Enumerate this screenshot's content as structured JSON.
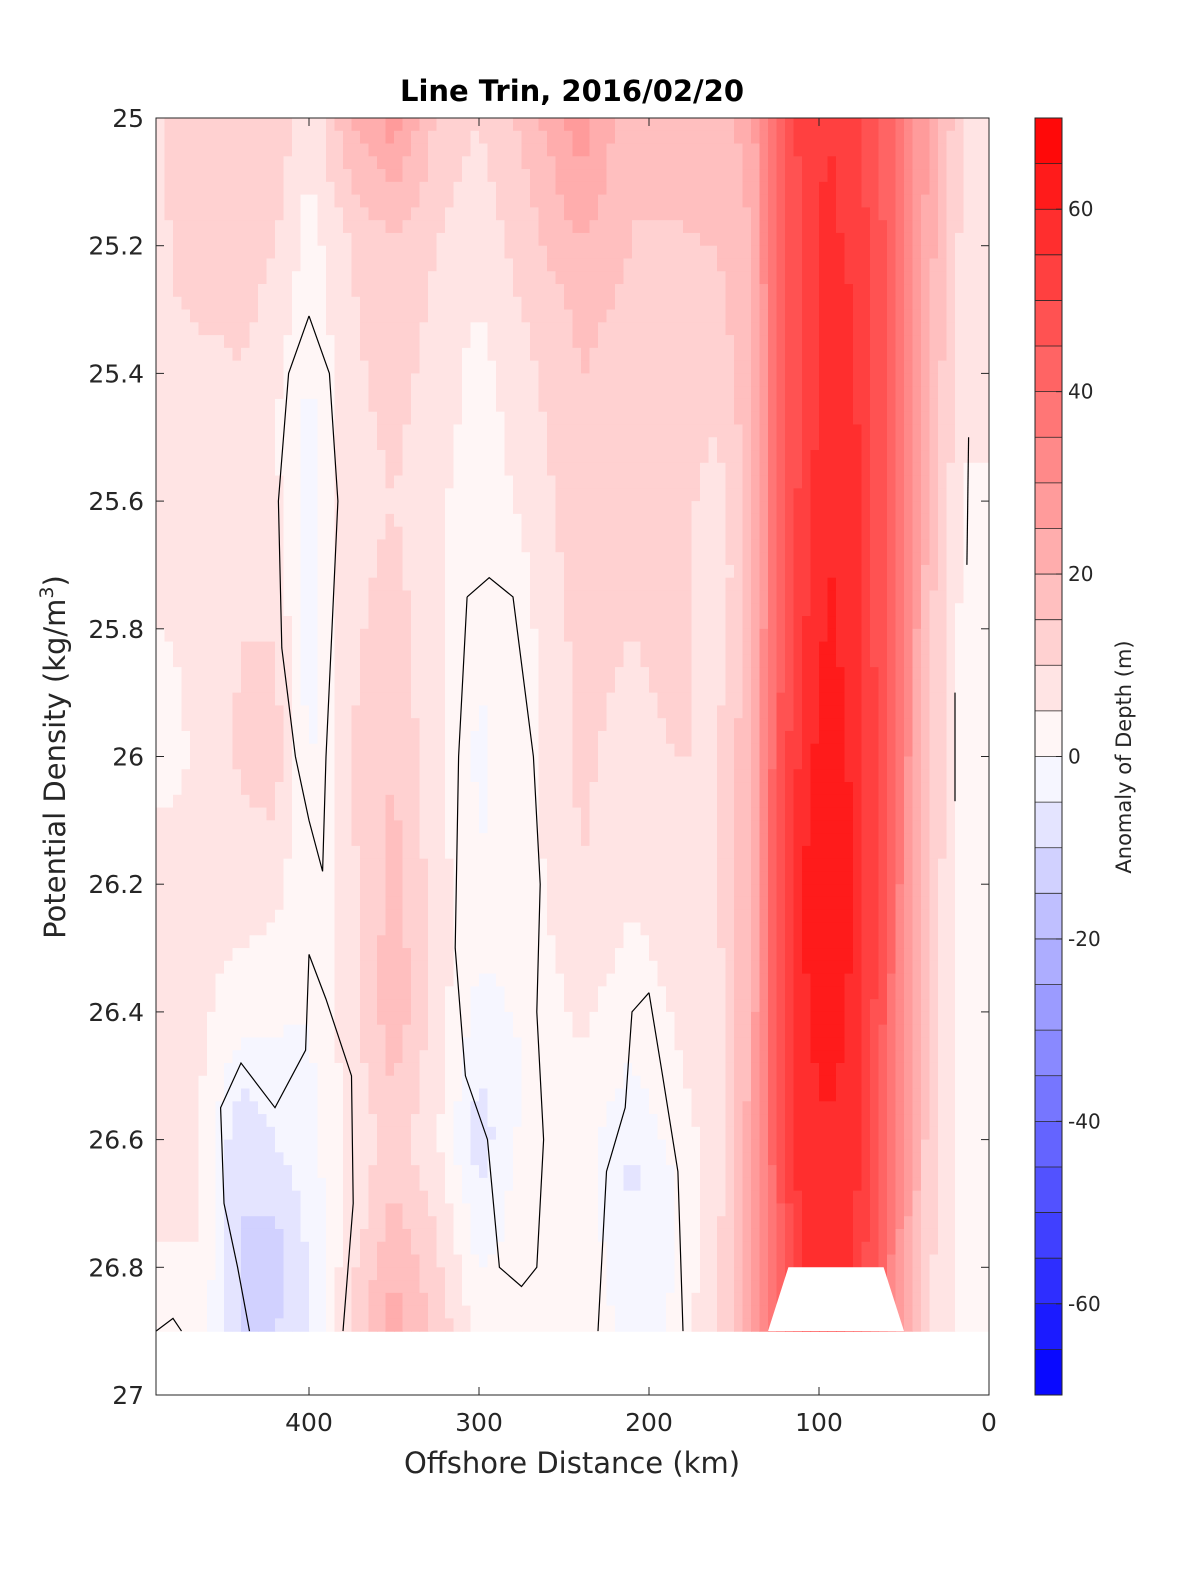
{
  "chart_data": {
    "type": "contour",
    "title": "Line Trin, 2016/02/20",
    "xlabel": "Offshore Distance (km)",
    "ylabel": "Potential Density (kg/m3)",
    "ylabel_parts": {
      "main": "Potential Density (kg/m",
      "sup": "3",
      "end": ")"
    },
    "xlim": [
      490,
      0
    ],
    "ylim": [
      25,
      27
    ],
    "x_reversed": true,
    "y_reversed": true,
    "xticks": [
      400,
      300,
      200,
      100,
      0
    ],
    "xtick_labels": [
      "400",
      "300",
      "200",
      "100",
      "0"
    ],
    "yticks": [
      25,
      25.2,
      25.4,
      25.6,
      25.8,
      26,
      26.2,
      26.4,
      26.6,
      26.8,
      27
    ],
    "ytick_labels": [
      "25",
      "25.2",
      "25.4",
      "25.6",
      "25.8",
      "26",
      "26.2",
      "26.4",
      "26.6",
      "26.8",
      "27"
    ],
    "data_bottom_density": 26.9,
    "colorbar": {
      "label": "Anomaly of Depth (m)",
      "range": [
        -70,
        70
      ],
      "step": 5,
      "ticks": [
        60,
        40,
        20,
        0,
        -20,
        -40,
        -60
      ],
      "tick_labels": [
        "60",
        "40",
        "20",
        "0",
        "-20",
        "-40",
        "-60"
      ],
      "negative_color": "#0000ff",
      "positive_color": "#ff0000"
    },
    "zero_contour_color": "#000000",
    "columns": [
      {
        "x": 485,
        "profile": [
          [
            25,
            10
          ],
          [
            25.5,
            8
          ],
          [
            26,
            3
          ],
          [
            26.2,
            8
          ],
          [
            26.6,
            8
          ],
          [
            26.86,
            3
          ],
          [
            26.9,
            0
          ]
        ]
      },
      {
        "x": 465,
        "profile": [
          [
            25,
            15
          ],
          [
            25.2,
            14
          ],
          [
            25.4,
            8
          ],
          [
            25.8,
            6
          ],
          [
            26.4,
            6
          ],
          [
            26.7,
            6
          ],
          [
            26.9,
            3
          ]
        ]
      },
      {
        "x": 440,
        "profile": [
          [
            25,
            15
          ],
          [
            25.2,
            13
          ],
          [
            25.5,
            8
          ],
          [
            26,
            11
          ],
          [
            26.4,
            3
          ],
          [
            26.6,
            -10
          ],
          [
            26.9,
            -10
          ]
        ]
      },
      {
        "x": 420,
        "profile": [
          [
            25,
            14
          ],
          [
            25.2,
            10
          ],
          [
            25.5,
            5
          ],
          [
            26,
            13
          ],
          [
            26.4,
            1
          ],
          [
            26.6,
            -5
          ],
          [
            26.8,
            -13
          ],
          [
            26.9,
            -10
          ]
        ]
      },
      {
        "x": 400,
        "profile": [
          [
            25,
            6
          ],
          [
            25.2,
            3
          ],
          [
            25.45,
            -1
          ],
          [
            25.75,
            -3
          ],
          [
            26.0,
            -1
          ],
          [
            26.3,
            1
          ],
          [
            26.6,
            -2
          ],
          [
            26.9,
            -6
          ]
        ]
      },
      {
        "x": 375,
        "profile": [
          [
            25,
            20
          ],
          [
            25.2,
            10
          ],
          [
            25.6,
            8
          ],
          [
            26,
            10
          ],
          [
            26.4,
            8
          ],
          [
            26.7,
            6
          ],
          [
            26.9,
            12
          ]
        ]
      },
      {
        "x": 350,
        "profile": [
          [
            25,
            28
          ],
          [
            25.2,
            14
          ],
          [
            25.6,
            10
          ],
          [
            26.1,
            16
          ],
          [
            26.4,
            19
          ],
          [
            26.6,
            12
          ],
          [
            26.9,
            23
          ]
        ]
      },
      {
        "x": 325,
        "profile": [
          [
            25,
            14
          ],
          [
            25.2,
            10
          ],
          [
            25.6,
            6
          ],
          [
            26,
            6
          ],
          [
            26.3,
            8
          ],
          [
            26.6,
            6
          ],
          [
            26.9,
            14
          ]
        ]
      },
      {
        "x": 300,
        "profile": [
          [
            25,
            10
          ],
          [
            25.4,
            3
          ],
          [
            25.7,
            2
          ],
          [
            26,
            -1
          ],
          [
            26.3,
            1
          ],
          [
            26.6,
            -8
          ],
          [
            26.8,
            0
          ],
          [
            26.9,
            3
          ]
        ]
      },
      {
        "x": 275,
        "profile": [
          [
            25,
            16
          ],
          [
            25.4,
            8
          ],
          [
            25.8,
            3
          ],
          [
            26.2,
            2
          ],
          [
            26.5,
            0
          ],
          [
            26.7,
            2
          ],
          [
            26.9,
            2
          ]
        ]
      },
      {
        "x": 240,
        "profile": [
          [
            25,
            28
          ],
          [
            25.3,
            16
          ],
          [
            25.8,
            12
          ],
          [
            26.2,
            10
          ],
          [
            26.4,
            6
          ],
          [
            26.6,
            2
          ],
          [
            26.9,
            4
          ]
        ]
      },
      {
        "x": 210,
        "profile": [
          [
            25,
            16
          ],
          [
            25.3,
            14
          ],
          [
            25.8,
            10
          ],
          [
            26.2,
            6
          ],
          [
            26.45,
            1
          ],
          [
            26.65,
            -6
          ],
          [
            26.9,
            -2
          ]
        ]
      },
      {
        "x": 185,
        "profile": [
          [
            25,
            16
          ],
          [
            25.3,
            14
          ],
          [
            25.8,
            12
          ],
          [
            26.2,
            8
          ],
          [
            26.5,
            4
          ],
          [
            26.7,
            -1
          ],
          [
            26.9,
            1
          ]
        ]
      },
      {
        "x": 160,
        "profile": [
          [
            25,
            18
          ],
          [
            25.4,
            12
          ],
          [
            25.7,
            5
          ],
          [
            26,
            10
          ],
          [
            26.4,
            8
          ],
          [
            26.7,
            8
          ],
          [
            26.9,
            10
          ]
        ]
      },
      {
        "x": 140,
        "profile": [
          [
            25,
            22
          ],
          [
            25.4,
            18
          ],
          [
            25.8,
            18
          ],
          [
            26.2,
            20
          ],
          [
            26.6,
            22
          ],
          [
            26.9,
            22
          ]
        ]
      },
      {
        "x": 125,
        "profile": [
          [
            25,
            42
          ],
          [
            25.4,
            40
          ],
          [
            25.8,
            42
          ],
          [
            26.2,
            46
          ],
          [
            26.6,
            44
          ],
          [
            26.9,
            40
          ]
        ]
      },
      {
        "x": 110,
        "profile": [
          [
            25,
            52
          ],
          [
            25.4,
            50
          ],
          [
            25.8,
            54
          ],
          [
            26.2,
            60
          ],
          [
            26.6,
            58
          ],
          [
            26.9,
            56
          ]
        ]
      },
      {
        "x": 95,
        "profile": [
          [
            25,
            55
          ],
          [
            25.4,
            58
          ],
          [
            25.8,
            61
          ],
          [
            26.2,
            66
          ],
          [
            26.4,
            63
          ],
          [
            26.6,
            59
          ],
          [
            26.9,
            57
          ]
        ]
      },
      {
        "x": 80,
        "profile": [
          [
            25,
            52
          ],
          [
            25.4,
            56
          ],
          [
            25.8,
            58
          ],
          [
            26.2,
            60
          ],
          [
            26.6,
            58
          ],
          [
            26.9,
            54
          ]
        ]
      },
      {
        "x": 65,
        "profile": [
          [
            25,
            46
          ],
          [
            25.4,
            48
          ],
          [
            25.8,
            48
          ],
          [
            26.2,
            50
          ],
          [
            26.6,
            46
          ],
          [
            26.9,
            42
          ]
        ]
      },
      {
        "x": 50,
        "profile": [
          [
            25,
            36
          ],
          [
            25.4,
            36
          ],
          [
            25.8,
            34
          ],
          [
            26.2,
            32
          ],
          [
            26.6,
            30
          ],
          [
            26.9,
            24
          ]
        ]
      },
      {
        "x": 35,
        "profile": [
          [
            25,
            24
          ],
          [
            25.4,
            20
          ],
          [
            25.8,
            16
          ],
          [
            26.2,
            14
          ],
          [
            26.6,
            12
          ],
          [
            26.9,
            10
          ]
        ]
      },
      {
        "x": 15,
        "profile": [
          [
            25,
            10
          ],
          [
            25.4,
            6
          ],
          [
            25.8,
            3
          ],
          [
            26.2,
            3
          ],
          [
            26.6,
            4
          ],
          [
            26.9,
            4
          ]
        ]
      }
    ],
    "mask_regions": [
      {
        "points": [
          [
            130,
            26.9
          ],
          [
            118,
            26.8
          ],
          [
            62,
            26.8
          ],
          [
            50,
            26.9
          ]
        ]
      }
    ],
    "zero_contours": [
      {
        "name": "zero-contour-a",
        "points": [
          [
            400,
            25.31
          ],
          [
            412,
            25.4
          ],
          [
            418,
            25.6
          ],
          [
            416,
            25.83
          ],
          [
            408,
            26.0
          ],
          [
            400,
            26.1
          ],
          [
            392,
            26.18
          ],
          [
            390,
            26.0
          ],
          [
            387,
            25.83
          ],
          [
            383,
            25.6
          ],
          [
            388,
            25.4
          ],
          [
            400,
            25.31
          ]
        ]
      },
      {
        "name": "zero-contour-b",
        "points": [
          [
            307,
            25.75
          ],
          [
            294,
            25.72
          ],
          [
            280,
            25.75
          ],
          [
            268,
            26.0
          ],
          [
            264,
            26.2
          ],
          [
            266,
            26.4
          ],
          [
            262,
            26.6
          ],
          [
            266,
            26.8
          ],
          [
            275,
            26.83
          ],
          [
            288,
            26.8
          ],
          [
            295,
            26.6
          ],
          [
            308,
            26.5
          ],
          [
            314,
            26.3
          ],
          [
            312,
            26.0
          ],
          [
            307,
            25.75
          ]
        ]
      },
      {
        "name": "zero-contour-c",
        "points": [
          [
            400,
            26.31
          ],
          [
            390,
            26.38
          ],
          [
            375,
            26.5
          ],
          [
            374,
            26.7
          ],
          [
            380,
            26.9
          ]
        ]
      },
      {
        "name": "zero-contour-d",
        "points": [
          [
            200,
            26.37
          ],
          [
            210,
            26.4
          ],
          [
            214,
            26.55
          ],
          [
            225,
            26.65
          ],
          [
            230,
            26.9
          ]
        ]
      },
      {
        "name": "zero-contour-e",
        "points": [
          [
            200,
            26.37
          ],
          [
            192,
            26.5
          ],
          [
            183,
            26.65
          ],
          [
            180,
            26.9
          ]
        ]
      },
      {
        "name": "zero-contour-f",
        "points": [
          [
            400,
            26.31
          ],
          [
            402,
            26.46
          ],
          [
            420,
            26.55
          ],
          [
            440,
            26.48
          ],
          [
            452,
            26.55
          ],
          [
            450,
            26.7
          ],
          [
            442,
            26.8
          ],
          [
            435,
            26.9
          ]
        ]
      },
      {
        "name": "zero-contour-g",
        "points": [
          [
            490,
            26.9
          ],
          [
            480,
            26.88
          ],
          [
            475,
            26.9
          ]
        ]
      },
      {
        "name": "zero-contour-h",
        "points": [
          [
            12,
            25.5
          ],
          [
            13,
            25.7
          ]
        ]
      },
      {
        "name": "zero-contour-i",
        "points": [
          [
            20,
            25.9
          ],
          [
            20,
            26.07
          ]
        ]
      }
    ]
  }
}
